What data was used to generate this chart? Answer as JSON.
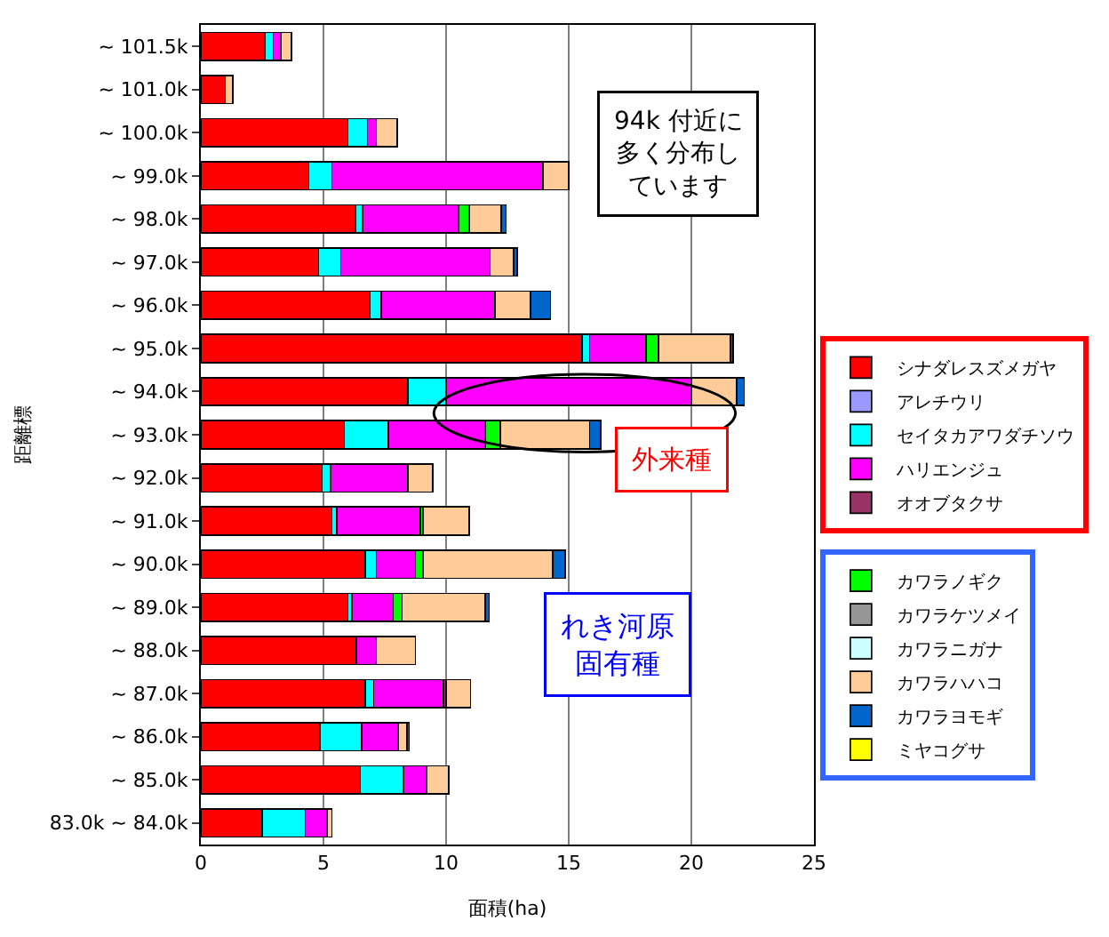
{
  "chart_data": {
    "type": "bar",
    "orientation": "horizontal",
    "stacked": true,
    "xlabel": "面積(ha)",
    "ylabel": "距離標",
    "categories": [
      "~ 101.5k",
      "~ 101.0k",
      "~ 100.0k",
      "~ 99.0k",
      "~ 98.0k",
      "~ 97.0k",
      "~ 96.0k",
      "~ 95.0k",
      "~ 94.0k",
      "~ 93.0k",
      "~ 92.0k",
      "~ 91.0k",
      "~ 90.0k",
      "~ 89.0k",
      "~ 88.0k",
      "~ 87.0k",
      "~ 86.0k",
      "~ 85.0k",
      "83.0k ~ 84.0k"
    ],
    "series": [
      {
        "name": "シナダレスズメガヤ",
        "color": "#ff0000",
        "values": [
          2.6,
          1.0,
          6.0,
          4.4,
          6.3,
          4.8,
          6.9,
          15.55,
          8.45,
          5.85,
          4.95,
          5.35,
          6.7,
          6.0,
          6.35,
          6.7,
          4.85,
          6.5,
          2.5
        ]
      },
      {
        "name": "アレチウリ",
        "color": "#9999ff",
        "values": [
          null,
          null,
          null,
          null,
          null,
          null,
          null,
          null,
          null,
          null,
          null,
          null,
          null,
          null,
          null,
          null,
          null,
          null,
          null
        ]
      },
      {
        "name": "セイタカアワダチソウ",
        "color": "#00ffff",
        "values": [
          0.35,
          null,
          0.8,
          0.95,
          0.3,
          0.9,
          0.45,
          0.3,
          1.55,
          1.8,
          0.35,
          0.2,
          0.45,
          0.15,
          null,
          0.35,
          1.7,
          1.75,
          1.75
        ]
      },
      {
        "name": "ハリエンジュ",
        "color": "#ff00ff",
        "values": [
          0.3,
          null,
          0.35,
          8.6,
          3.9,
          6.1,
          4.65,
          2.3,
          10.0,
          3.95,
          3.15,
          3.4,
          1.6,
          1.7,
          0.8,
          2.85,
          1.5,
          0.95,
          0.9
        ]
      },
      {
        "name": "オオブタクサ",
        "color": "#993366",
        "values": [
          null,
          null,
          null,
          null,
          null,
          null,
          null,
          null,
          null,
          null,
          null,
          null,
          null,
          null,
          null,
          0.1,
          null,
          null,
          null
        ]
      },
      {
        "name": "カワラノギク",
        "color": "#00ff00",
        "values": [
          null,
          null,
          null,
          null,
          0.45,
          null,
          null,
          0.5,
          null,
          0.6,
          null,
          0.1,
          0.3,
          0.35,
          null,
          null,
          null,
          null,
          null
        ]
      },
      {
        "name": "カワラケツメイ",
        "color": "#969696",
        "values": [
          null,
          null,
          null,
          null,
          null,
          null,
          null,
          null,
          null,
          null,
          null,
          null,
          null,
          null,
          null,
          null,
          null,
          null,
          null
        ]
      },
      {
        "name": "カワラニガナ",
        "color": "#ccffff",
        "values": [
          null,
          null,
          null,
          null,
          null,
          null,
          null,
          null,
          null,
          null,
          null,
          null,
          null,
          null,
          null,
          null,
          null,
          null,
          null
        ]
      },
      {
        "name": "カワラハハコ",
        "color": "#ffcc99",
        "values": [
          0.45,
          0.3,
          0.85,
          1.05,
          1.3,
          0.95,
          1.45,
          2.95,
          1.85,
          3.65,
          1.0,
          1.9,
          5.3,
          3.4,
          1.6,
          1.0,
          0.35,
          0.9,
          0.2
        ]
      },
      {
        "name": "カワラヨモギ",
        "color": "#0066cc",
        "values": [
          null,
          null,
          null,
          null,
          0.2,
          0.15,
          0.8,
          0.1,
          0.3,
          0.45,
          null,
          null,
          0.5,
          0.15,
          null,
          null,
          0.1,
          null,
          null
        ]
      },
      {
        "name": "ミヤコグサ",
        "color": "#ffff00",
        "values": [
          null,
          null,
          null,
          null,
          null,
          null,
          null,
          null,
          null,
          null,
          null,
          null,
          null,
          null,
          null,
          null,
          null,
          null,
          null
        ]
      }
    ],
    "xlim": [
      0,
      25
    ],
    "xticks": [
      0,
      5,
      10,
      15,
      20,
      25
    ],
    "grid": "x",
    "legend": "right",
    "annotations": [
      "94k 付近に多く分布しています",
      "外来種",
      "れき河原固有種"
    ]
  }
}
